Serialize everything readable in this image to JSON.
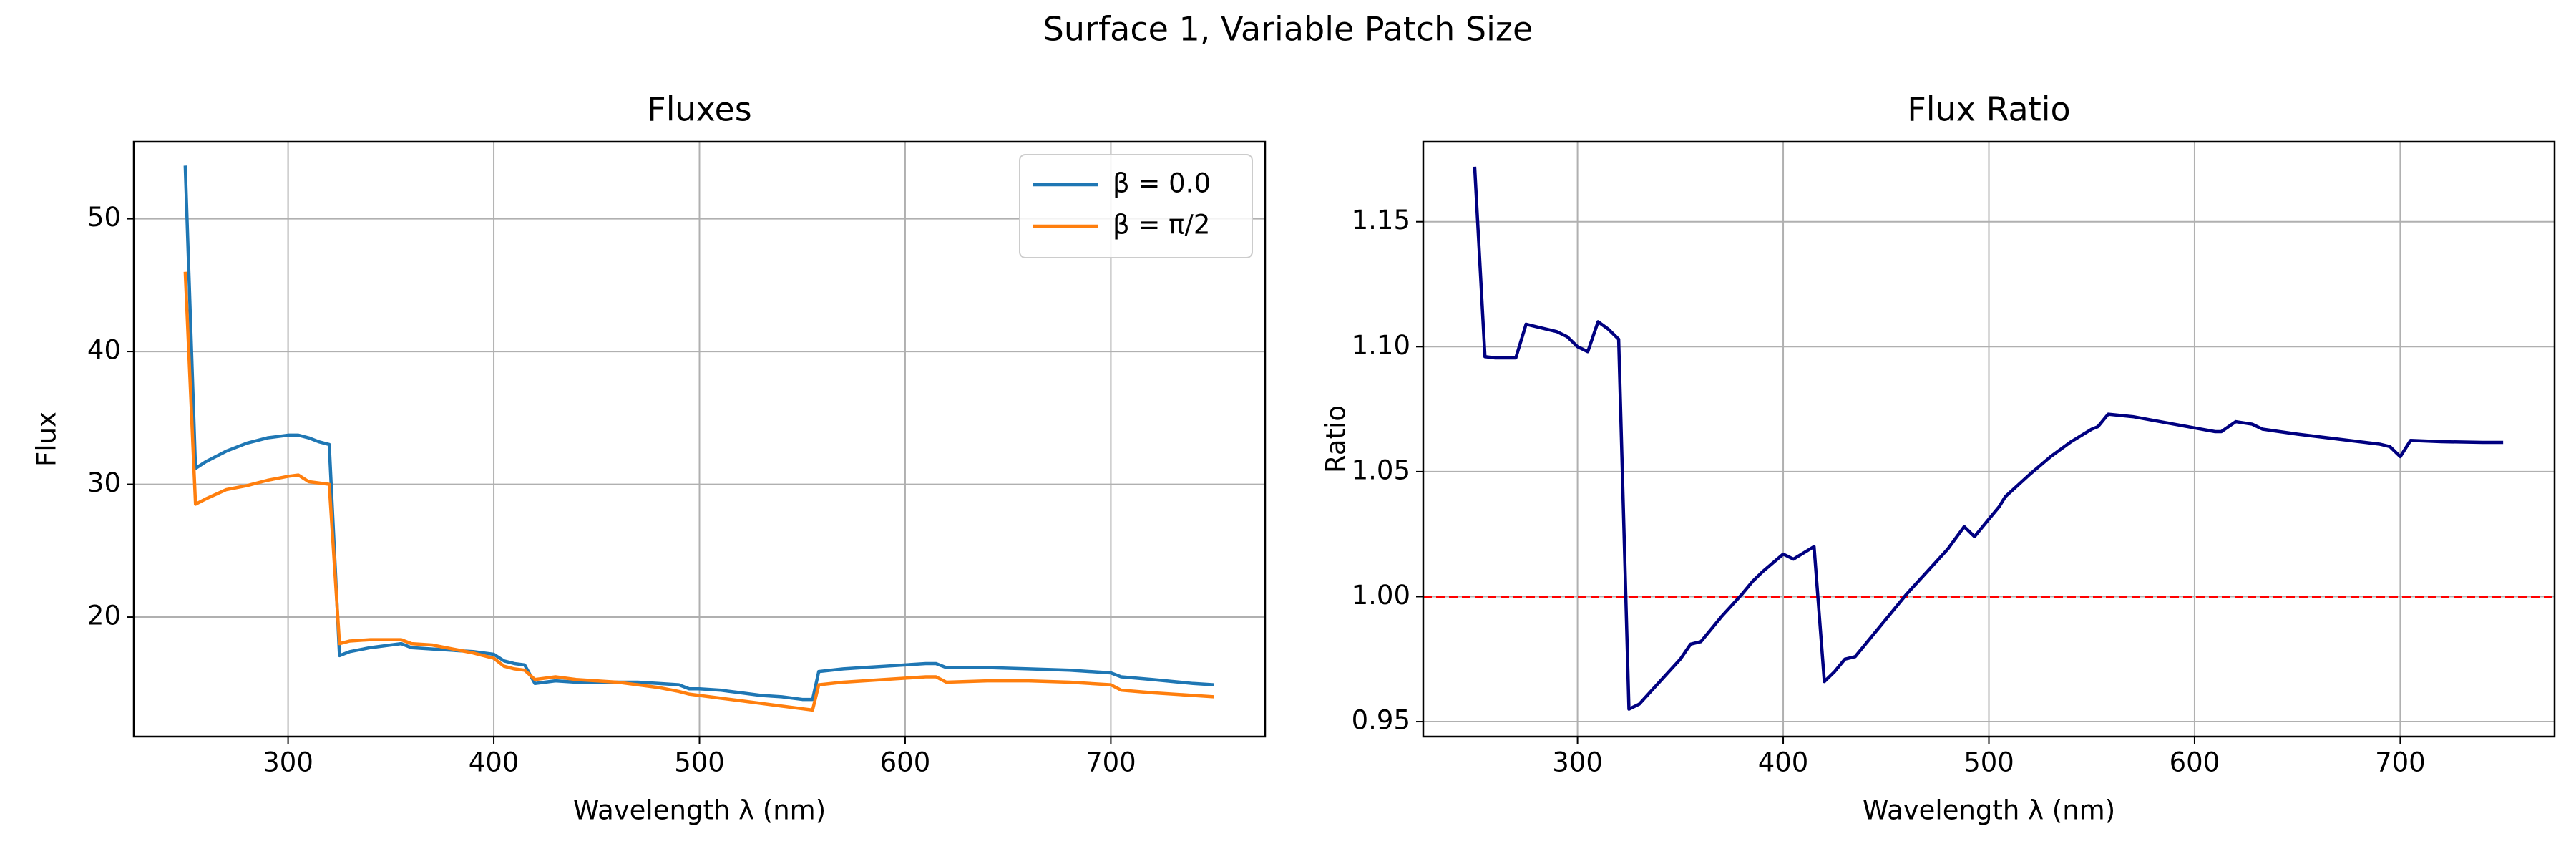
{
  "title": "Surface 1, Variable Patch Size",
  "chart_data": [
    {
      "type": "line",
      "title": "Fluxes",
      "xlabel": "Wavelength λ (nm)",
      "ylabel": "Flux",
      "x": [
        250,
        255,
        260,
        270,
        280,
        290,
        300,
        305,
        310,
        315,
        320,
        325,
        330,
        340,
        350,
        355,
        360,
        370,
        380,
        390,
        400,
        405,
        410,
        415,
        420,
        430,
        440,
        450,
        460,
        470,
        480,
        490,
        495,
        500,
        510,
        520,
        530,
        540,
        550,
        555,
        558,
        570,
        580,
        590,
        600,
        610,
        615,
        620,
        640,
        660,
        680,
        700,
        705,
        720,
        740,
        750
      ],
      "series": [
        {
          "name": "β = 0.0",
          "color": "#1f77b4",
          "values": [
            54,
            31.2,
            31.7,
            32.5,
            33.1,
            33.5,
            33.7,
            33.7,
            33.5,
            33.2,
            33.0,
            17.1,
            17.4,
            17.7,
            17.9,
            18.0,
            17.7,
            17.6,
            17.5,
            17.4,
            17.2,
            16.7,
            16.5,
            16.4,
            15.0,
            15.2,
            15.1,
            15.1,
            15.1,
            15.1,
            15.0,
            14.9,
            14.6,
            14.6,
            14.5,
            14.3,
            14.1,
            14.0,
            13.8,
            13.8,
            15.9,
            16.1,
            16.2,
            16.3,
            16.4,
            16.5,
            16.5,
            16.2,
            16.2,
            16.1,
            16.0,
            15.8,
            15.5,
            15.3,
            15.0,
            14.9
          ]
        },
        {
          "name": "β = π/2",
          "color": "#ff7f0e",
          "values": [
            46,
            28.5,
            28.9,
            29.6,
            29.9,
            30.3,
            30.6,
            30.7,
            30.2,
            30.1,
            30.0,
            18.0,
            18.2,
            18.3,
            18.3,
            18.3,
            18.0,
            17.9,
            17.6,
            17.3,
            16.9,
            16.3,
            16.1,
            16.0,
            15.3,
            15.5,
            15.3,
            15.2,
            15.1,
            14.9,
            14.7,
            14.4,
            14.2,
            14.1,
            13.9,
            13.7,
            13.5,
            13.3,
            13.1,
            13.0,
            14.9,
            15.1,
            15.2,
            15.3,
            15.4,
            15.5,
            15.5,
            15.1,
            15.2,
            15.2,
            15.1,
            14.9,
            14.5,
            14.3,
            14.1,
            14.0
          ]
        }
      ],
      "xlim": [
        225,
        775
      ],
      "xticks": [
        300,
        400,
        500,
        600,
        700
      ],
      "ylim": [
        11,
        55.8
      ],
      "yticks": [
        20,
        30,
        40,
        50
      ],
      "grid": true,
      "legend": "upper right"
    },
    {
      "type": "line",
      "title": "Flux Ratio",
      "xlabel": "Wavelength λ (nm)",
      "ylabel": "Ratio",
      "x": [
        250,
        255,
        260,
        270,
        275,
        280,
        290,
        295,
        300,
        305,
        310,
        315,
        320,
        325,
        330,
        340,
        350,
        355,
        360,
        370,
        380,
        385,
        390,
        400,
        405,
        415,
        420,
        425,
        430,
        435,
        440,
        450,
        460,
        470,
        480,
        488,
        493,
        500,
        505,
        508,
        520,
        530,
        540,
        550,
        553,
        558,
        570,
        580,
        590,
        600,
        610,
        613,
        620,
        628,
        633,
        650,
        670,
        690,
        695,
        700,
        705,
        720,
        740,
        750
      ],
      "values": [
        1.172,
        1.096,
        1.0955,
        1.0955,
        1.109,
        1.108,
        1.106,
        1.104,
        1.1,
        1.098,
        1.11,
        1.107,
        1.103,
        0.955,
        0.957,
        0.966,
        0.975,
        0.981,
        0.982,
        0.992,
        1.001,
        1.006,
        1.01,
        1.017,
        1.015,
        1.02,
        0.966,
        0.97,
        0.975,
        0.976,
        0.981,
        0.991,
        1.001,
        1.01,
        1.019,
        1.028,
        1.024,
        1.031,
        1.036,
        1.04,
        1.049,
        1.056,
        1.062,
        1.067,
        1.068,
        1.073,
        1.072,
        1.0705,
        1.069,
        1.0675,
        1.066,
        1.066,
        1.07,
        1.069,
        1.067,
        1.065,
        1.063,
        1.061,
        1.06,
        1.056,
        1.0625,
        1.062,
        1.0617,
        1.0617
      ],
      "color": "#000080",
      "hline": 1,
      "hline_color": "#ff0000",
      "xlim": [
        225,
        775
      ],
      "xticks": [
        300,
        400,
        500,
        600,
        700
      ],
      "ylim": [
        0.944,
        1.182
      ],
      "yticks": [
        0.95,
        {
          "value": 1,
          "label": "1.00"
        },
        1.05,
        {
          "value": 1.1,
          "label": "1.10"
        },
        1.15
      ],
      "grid": true
    }
  ]
}
